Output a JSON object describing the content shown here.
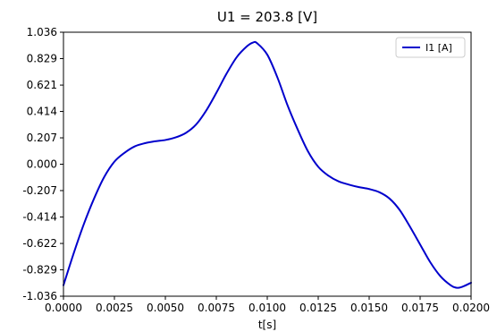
{
  "chart_data": {
    "type": "line",
    "title": "U1 = 203.8 [V]",
    "xlabel": "t[s]",
    "ylabel": "",
    "xlim": [
      0.0,
      0.02
    ],
    "ylim": [
      -1.036,
      1.036
    ],
    "x_ticks": [
      "0.0000",
      "0.0025",
      "0.0050",
      "0.0075",
      "0.0100",
      "0.0125",
      "0.0150",
      "0.0175",
      "0.0200"
    ],
    "y_ticks": [
      "1.036",
      "0.829",
      "0.621",
      "0.414",
      "0.207",
      "0.000",
      "-0.207",
      "-0.414",
      "-0.622",
      "-0.829",
      "-1.036"
    ],
    "grid": false,
    "legend_position": "top-right",
    "series": [
      {
        "name": "I1 [A]",
        "color": "#0000cc",
        "x": [
          0.0,
          0.0005,
          0.001,
          0.0015,
          0.002,
          0.0025,
          0.003,
          0.0035,
          0.004,
          0.0045,
          0.005,
          0.0055,
          0.006,
          0.0065,
          0.007,
          0.0075,
          0.008,
          0.0085,
          0.009,
          0.0093,
          0.0095,
          0.01,
          0.0105,
          0.011,
          0.0115,
          0.012,
          0.0125,
          0.013,
          0.0135,
          0.014,
          0.0145,
          0.015,
          0.0155,
          0.016,
          0.0165,
          0.017,
          0.0175,
          0.018,
          0.0185,
          0.019,
          0.0193,
          0.0196,
          0.02
        ],
        "y": [
          -0.95,
          -0.7,
          -0.47,
          -0.27,
          -0.1,
          0.02,
          0.09,
          0.14,
          0.165,
          0.18,
          0.19,
          0.21,
          0.245,
          0.31,
          0.42,
          0.56,
          0.71,
          0.84,
          0.925,
          0.955,
          0.95,
          0.86,
          0.68,
          0.46,
          0.27,
          0.1,
          -0.02,
          -0.09,
          -0.135,
          -0.16,
          -0.18,
          -0.195,
          -0.22,
          -0.27,
          -0.36,
          -0.49,
          -0.63,
          -0.77,
          -0.88,
          -0.95,
          -0.97,
          -0.96,
          -0.93
        ]
      }
    ]
  }
}
